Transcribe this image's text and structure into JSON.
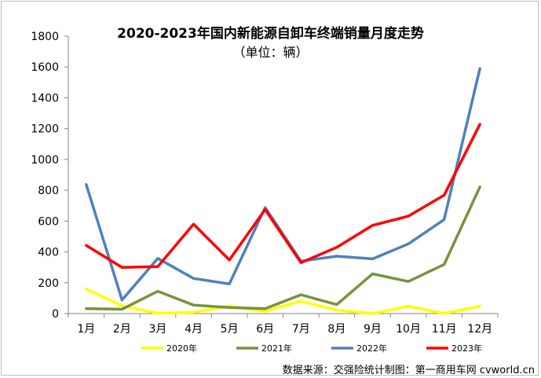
{
  "chart_data": {
    "type": "line",
    "title": "2020-2023年国内新能源自卸车终端销量月度走势",
    "subtitle": "（单位：辆）",
    "categories": [
      "1月",
      "2月",
      "3月",
      "4月",
      "5月",
      "6月",
      "7月",
      "8月",
      "9月",
      "10月",
      "11月",
      "12月"
    ],
    "ylim": [
      0,
      1800
    ],
    "yticks": [
      0,
      200,
      400,
      600,
      800,
      1000,
      1200,
      1400,
      1600,
      1800
    ],
    "grid": false,
    "legend_position": "bottom",
    "series": [
      {
        "name": "2020年",
        "color": "#ffff00",
        "values": [
          160,
          50,
          2,
          8,
          48,
          15,
          80,
          22,
          0,
          48,
          0,
          48
        ]
      },
      {
        "name": "2021年",
        "color": "#77933c",
        "values": [
          32,
          28,
          145,
          55,
          40,
          32,
          122,
          58,
          258,
          208,
          318,
          822
        ]
      },
      {
        "name": "2022年",
        "color": "#4f81bd",
        "values": [
          838,
          88,
          358,
          228,
          192,
          688,
          340,
          372,
          355,
          452,
          610,
          1590
        ]
      },
      {
        "name": "2023年",
        "color": "#ff0000",
        "values": [
          442,
          300,
          305,
          580,
          348,
          675,
          330,
          430,
          572,
          632,
          768,
          1228
        ]
      }
    ],
    "source": "数据来源：交强险统计制图：第一商用车网 cvworld.cn"
  }
}
